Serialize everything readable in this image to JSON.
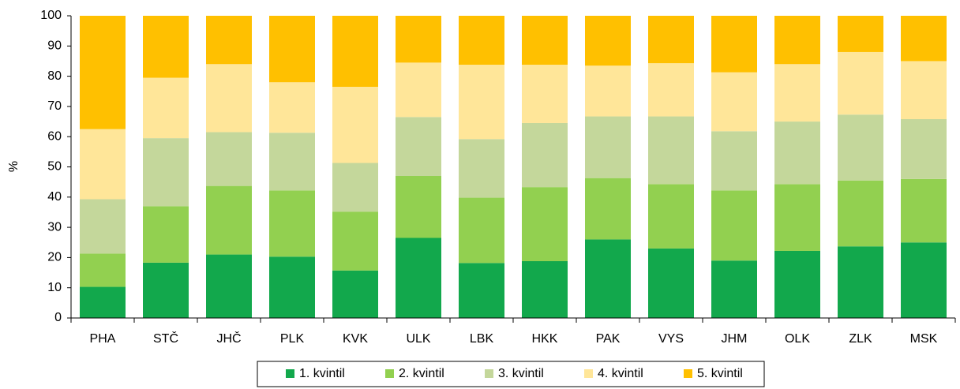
{
  "chart_data": {
    "type": "stacked_bar",
    "y_label": "%",
    "categories": [
      "PHA",
      "STČ",
      "JHČ",
      "PLK",
      "KVK",
      "ULK",
      "LBK",
      "HKK",
      "PAK",
      "VYS",
      "JHM",
      "OLK",
      "ZLK",
      "MSK"
    ],
    "series": [
      {
        "name": "1. kvintil",
        "color": "#12a84c",
        "values": [
          10.3,
          18.3,
          21,
          20.3,
          15.7,
          26.5,
          18.2,
          18.8,
          26,
          23,
          19,
          22.2,
          23.7,
          25
        ]
      },
      {
        "name": "2. kvintil",
        "color": "#92d050",
        "values": [
          11,
          18.7,
          22.7,
          21.9,
          19.5,
          20.5,
          21.6,
          24.5,
          20.3,
          21.3,
          23.2,
          22.1,
          21.8,
          21
        ]
      },
      {
        "name": "3. kvintil",
        "color": "#c4d79b",
        "values": [
          18,
          22.5,
          17.8,
          19.1,
          16.1,
          19.5,
          19.4,
          21.2,
          20.4,
          22.4,
          19.6,
          20.7,
          21.8,
          19.8
        ]
      },
      {
        "name": "4. kvintil",
        "color": "#ffe699",
        "values": [
          23.2,
          20,
          22.5,
          16.7,
          25.2,
          18,
          24.6,
          19.3,
          16.8,
          17.6,
          19.5,
          19,
          20.7,
          19.2
        ]
      },
      {
        "name": "5. kvintil",
        "color": "#ffc000",
        "values": [
          37.5,
          20.5,
          16,
          22,
          23.5,
          15.5,
          16.2,
          16.2,
          16.5,
          15.7,
          18.7,
          16,
          12,
          15
        ]
      }
    ],
    "ylim": [
      0,
      100
    ],
    "yticks": [
      0,
      10,
      20,
      30,
      40,
      50,
      60,
      70,
      80,
      90,
      100
    ],
    "legend": "bottom"
  }
}
